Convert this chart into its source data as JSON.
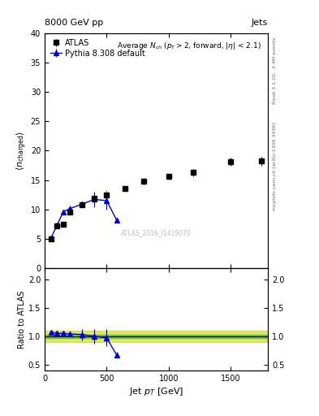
{
  "title_top_left": "8000 GeV pp",
  "title_top_right": "Jets",
  "right_label_top": "Rivet 3.1.10,  3.4M events",
  "right_label_bot": "mcplots.cern.ch [arXiv:1306.3436]",
  "analysis_label": "ATLAS_2016_I1419070",
  "ylabel_main": "$\\langle n_{\\rm charged}\\rangle$",
  "ylabel_ratio": "Ratio to ATLAS",
  "xlabel": "Jet $p_T$ [GeV]",
  "ylim_main": [
    0,
    40
  ],
  "ylim_ratio": [
    0.4,
    2.2
  ],
  "yticks_main": [
    0,
    5,
    10,
    15,
    20,
    25,
    30,
    35,
    40
  ],
  "yticks_ratio": [
    0.5,
    1.0,
    1.5,
    2.0
  ],
  "xlim": [
    0,
    1800
  ],
  "xticks": [
    0,
    500,
    1000,
    1500
  ],
  "atlas_x": [
    50,
    100,
    150,
    200,
    300,
    400,
    500,
    650,
    800,
    1000,
    1200,
    1500,
    1750
  ],
  "atlas_y": [
    5.0,
    7.2,
    7.5,
    9.5,
    10.8,
    11.9,
    12.5,
    13.5,
    14.8,
    15.6,
    16.3,
    18.1,
    18.2
  ],
  "atlas_yerr": [
    0.2,
    0.2,
    0.2,
    0.3,
    0.3,
    0.3,
    0.4,
    0.4,
    0.5,
    0.5,
    0.6,
    0.7,
    0.8
  ],
  "pythia_x": [
    50,
    100,
    150,
    200,
    300,
    400,
    500,
    580
  ],
  "pythia_y": [
    5.1,
    7.3,
    9.6,
    10.1,
    10.9,
    11.7,
    11.5,
    8.2
  ],
  "pythia_yerr": [
    0.1,
    0.2,
    0.3,
    0.5,
    0.5,
    1.3,
    1.6,
    0.3
  ],
  "ratio_x": [
    50,
    100,
    150,
    200,
    300,
    400,
    500,
    580
  ],
  "ratio_y": [
    1.07,
    1.05,
    1.05,
    1.04,
    1.03,
    1.0,
    0.97,
    0.67
  ],
  "ratio_yerr": [
    0.02,
    0.02,
    0.03,
    0.04,
    0.1,
    0.13,
    0.15,
    0.05
  ],
  "atlas_color": "#000000",
  "pythia_color": "#0000cc",
  "green_color": "#33bb33",
  "yellow_color": "#cccc00",
  "green_lo": 0.97,
  "green_hi": 1.03,
  "yellow_lo": 0.9,
  "yellow_hi": 1.1
}
